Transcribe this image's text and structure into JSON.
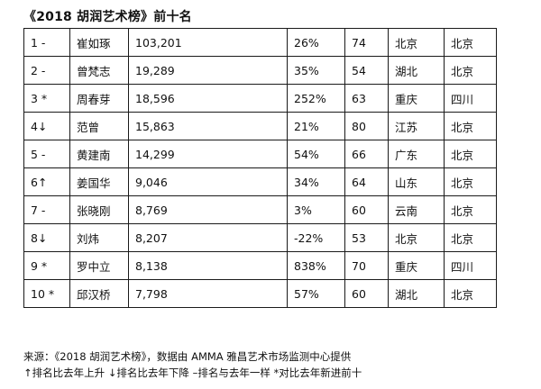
{
  "title": "《2018 胡润艺术榜》前十名",
  "rows": [
    {
      "rank": "1 -",
      "name": "崔如琢",
      "sales": "103,201",
      "change": "26%",
      "age": "74",
      "birthplace": "北京",
      "residence": "北京"
    },
    {
      "rank": "2 -",
      "name": "曾梵志",
      "sales": "19,289",
      "change": "35%",
      "age": "54",
      "birthplace": "湖北",
      "residence": "北京"
    },
    {
      "rank": "3 *",
      "name": "周春芽",
      "sales": "18,596",
      "change": "252%",
      "age": "63",
      "birthplace": "重庆",
      "residence": "四川"
    },
    {
      "rank": "4↓",
      "name": "范曾",
      "sales": "15,863",
      "change": "21%",
      "age": "80",
      "birthplace": "江苏",
      "residence": "北京"
    },
    {
      "rank": "5 -",
      "name": "黄建南",
      "sales": "14,299",
      "change": "54%",
      "age": "66",
      "birthplace": "广东",
      "residence": "北京"
    },
    {
      "rank": "6↑",
      "name": "姜国华",
      "sales": "9,046",
      "change": "34%",
      "age": "64",
      "birthplace": "山东",
      "residence": "北京"
    },
    {
      "rank": "7 -",
      "name": "张晓刚",
      "sales": "8,769",
      "change": "3%",
      "age": "60",
      "birthplace": "云南",
      "residence": "北京"
    },
    {
      "rank": "8↓",
      "name": "刘炜",
      "sales": "8,207",
      "change": "-22%",
      "age": "53",
      "birthplace": "北京",
      "residence": "北京"
    },
    {
      "rank": "9 *",
      "name": "罗中立",
      "sales": "8,138",
      "change": "838%",
      "age": "70",
      "birthplace": "重庆",
      "residence": "四川"
    },
    {
      "rank": "10 *",
      "name": "邱汉桥",
      "sales": "7,798",
      "change": "57%",
      "age": "60",
      "birthplace": "湖北",
      "residence": "北京"
    }
  ],
  "notes": {
    "source": "来源：《2018 胡润艺术榜》，数据由 AMMA 雅昌艺术市场监测中心提供",
    "legend": "↑排名比去年上升 ↓排名比去年下降 –排名与去年一样 *对比去年新进前十"
  }
}
